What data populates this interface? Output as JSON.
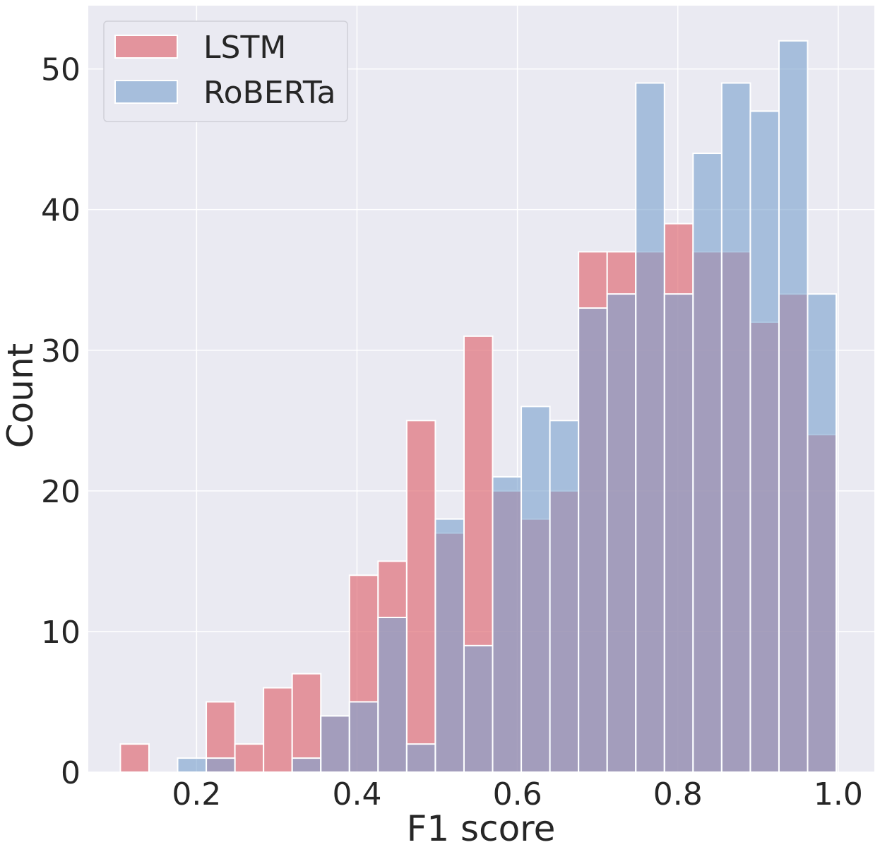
{
  "chart_data": {
    "type": "bar",
    "title": "",
    "xlabel": "F1 score",
    "ylabel": "Count",
    "xlim": [
      0.065,
      1.045
    ],
    "ylim": [
      0,
      54.5
    ],
    "bin_width": 0.0357,
    "first_bin_left": 0.105,
    "grid": true,
    "legend_placement": "top-left",
    "x_ticks": [
      "0.2",
      "0.4",
      "0.6",
      "0.8",
      "1.0"
    ],
    "x_tick_values": [
      0.2,
      0.4,
      0.6,
      0.8,
      1.0
    ],
    "y_ticks": [
      "0",
      "10",
      "20",
      "30",
      "40",
      "50"
    ],
    "y_tick_values": [
      0,
      10,
      20,
      30,
      40,
      50
    ],
    "series": [
      {
        "name": "LSTM",
        "color": "#e0737c",
        "values": [
          2,
          0,
          0,
          5,
          2,
          6,
          7,
          4,
          14,
          15,
          25,
          17,
          31,
          20,
          18,
          20,
          37,
          37,
          37,
          39,
          37,
          37,
          32,
          34,
          24
        ]
      },
      {
        "name": "RoBERTa",
        "color": "#7ca3cf",
        "values": [
          0,
          0,
          1,
          1,
          0,
          0,
          1,
          4,
          5,
          11,
          2,
          18,
          9,
          21,
          26,
          25,
          33,
          34,
          49,
          34,
          44,
          49,
          47,
          52,
          34
        ]
      }
    ],
    "colors": {
      "background": "#eaeaf2",
      "grid": "#ffffff",
      "text": "#262626",
      "overlap": "#bd7b8b"
    }
  }
}
